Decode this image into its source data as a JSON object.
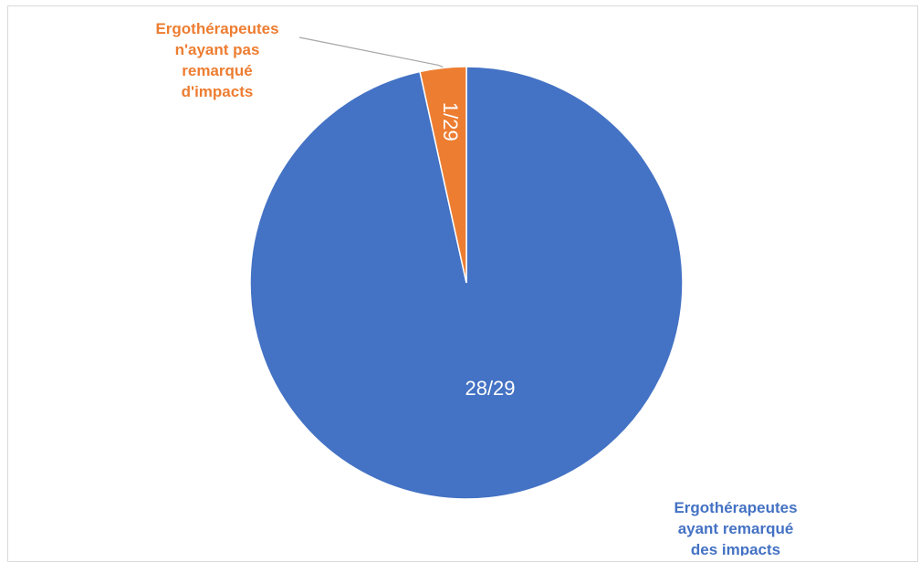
{
  "chart_data": {
    "type": "pie",
    "title": "",
    "slices": [
      {
        "category": "Ergothérapeutes ayant remarqué des impacts",
        "category_lines": [
          "Ergothérapeutes",
          "ayant remarqué",
          "des impacts"
        ],
        "value": 28,
        "data_label": "28/29",
        "color": "#4472c4"
      },
      {
        "category": "Ergothérapeutes n'ayant pas remarqué d'impacts",
        "category_lines": [
          "Ergothérapeutes",
          "n'ayant pas",
          "remarqué",
          "d'impacts"
        ],
        "value": 1,
        "data_label": "1/29",
        "color": "#ed7d31"
      }
    ],
    "total": 29,
    "start_angle": "top",
    "direction": "clockwise",
    "legend": "none",
    "leader_line_color": "#a6a6a6"
  }
}
